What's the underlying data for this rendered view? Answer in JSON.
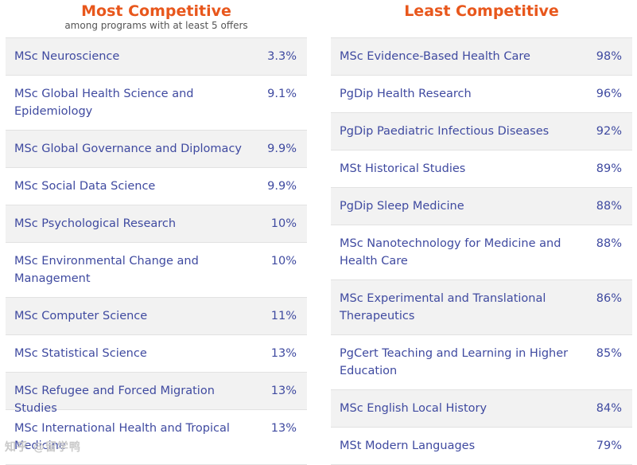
{
  "most": {
    "title": "Most Competitive",
    "subtitle": "among programs with at least 5 offers",
    "rows": [
      {
        "name": "MSc Neuroscience",
        "pct": "3.3%"
      },
      {
        "name": "MSc Global Health Science and Epidemiology",
        "pct": "9.1%"
      },
      {
        "name": "MSc Global Governance and Diplomacy",
        "pct": "9.9%"
      },
      {
        "name": "MSc Social Data Science",
        "pct": "9.9%"
      },
      {
        "name": "MSc Psychological Research",
        "pct": "10%"
      },
      {
        "name": "MSc Environmental Change and Management",
        "pct": "10%"
      },
      {
        "name": "MSc Computer Science",
        "pct": "11%"
      },
      {
        "name": "MSc Statistical Science",
        "pct": "13%"
      },
      {
        "name": "MSc Refugee and Forced Migration Studies",
        "pct": "13%"
      },
      {
        "name": "MSc International Health and Tropical Medicine",
        "pct": "13%"
      }
    ]
  },
  "least": {
    "title": "Least Competitive",
    "rows": [
      {
        "name": "MSc Evidence-Based Health Care",
        "pct": "98%"
      },
      {
        "name": "PgDip Health Research",
        "pct": "96%"
      },
      {
        "name": "PgDip Paediatric Infectious Diseases",
        "pct": "92%"
      },
      {
        "name": "MSt Historical Studies",
        "pct": "89%"
      },
      {
        "name": "PgDip Sleep Medicine",
        "pct": "88%"
      },
      {
        "name": "MSc Nanotechnology for Medicine and Health Care",
        "pct": "88%"
      },
      {
        "name": "MSc Experimental and Translational Therapeutics",
        "pct": "86%"
      },
      {
        "name": "PgCert Teaching and Learning in Higher Education",
        "pct": "85%"
      },
      {
        "name": "MSc English Local History",
        "pct": "84%"
      },
      {
        "name": "MSt Modern Languages",
        "pct": "79%"
      }
    ]
  },
  "watermark": "知乎 @留学鸭"
}
